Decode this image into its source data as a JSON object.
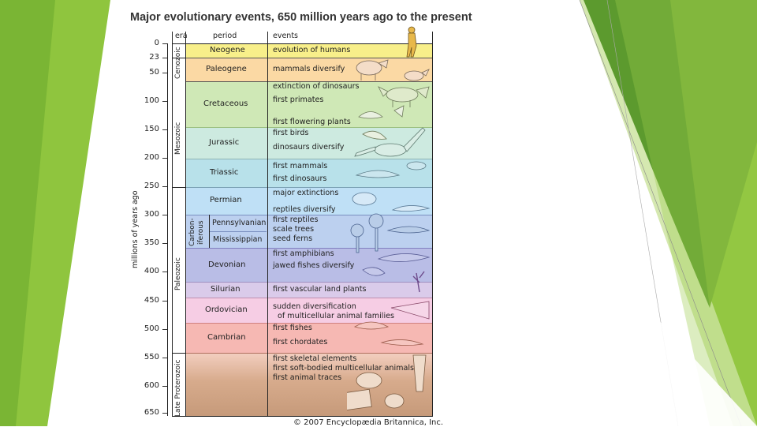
{
  "title": "Major evolutionary events, 650 million years ago to the present",
  "headers": {
    "era": "era",
    "period": "period",
    "events": "events"
  },
  "axis_label": "millions of years ago",
  "ticks": [
    "0",
    "23",
    "50",
    "100",
    "150",
    "200",
    "250",
    "300",
    "350",
    "400",
    "450",
    "500",
    "550",
    "600",
    "650"
  ],
  "eras": {
    "cenozoic": "Cenozoic",
    "mesozoic": "Mesozoic",
    "paleozoic": "Paleozoic",
    "late_proterozoic": "Late Proterozoic"
  },
  "carboniferous": [
    "Carbon-",
    "iferous"
  ],
  "periods": {
    "neogene": "Neogene",
    "paleogene": "Paleogene",
    "cretaceous": "Cretaceous",
    "jurassic": "Jurassic",
    "triassic": "Triassic",
    "permian": "Permian",
    "pennsylvanian": "Pennsylvanian",
    "mississippian": "Mississippian",
    "devonian": "Devonian",
    "silurian": "Silurian",
    "ordovician": "Ordovician",
    "cambrian": "Cambrian"
  },
  "events": [
    "evolution of humans",
    "mammals diversify",
    "extinction of dinosaurs",
    "first primates",
    "first flowering plants",
    "first birds",
    "dinosaurs diversify",
    "first mammals",
    "first dinosaurs",
    "major extinctions",
    "reptiles diversify",
    "first reptiles",
    "scale trees",
    "seed ferns",
    "first amphibians",
    "jawed fishes diversify",
    "first vascular land plants",
    "sudden diversification",
    "of multicellular animal families",
    "first fishes",
    "first chordates",
    "first skeletal elements",
    "first soft-bodied multicellular animals",
    "first animal traces"
  ],
  "copyright": "© 2007 Encyclopædia Britannica, Inc.",
  "colors": {
    "neogene": "#f8ef8a",
    "paleogene": "#fbd9a4",
    "mesozoic": "#d6ecbf",
    "cretaceous": "#cfe8b6",
    "jurassic": "#cdeae0",
    "triassic": "#b8e1ea",
    "permian": "#bfe0f6",
    "carboniferous": "#bcd0ef",
    "devonian": "#b9bde6",
    "silurian": "#dacbea",
    "ordovician": "#f6cde4",
    "cambrian": "#f6b8b3",
    "proterozoic": "#d7ab8c",
    "slide_green_dark": "#5c9a2e",
    "slide_green_light": "#8fc53e"
  }
}
